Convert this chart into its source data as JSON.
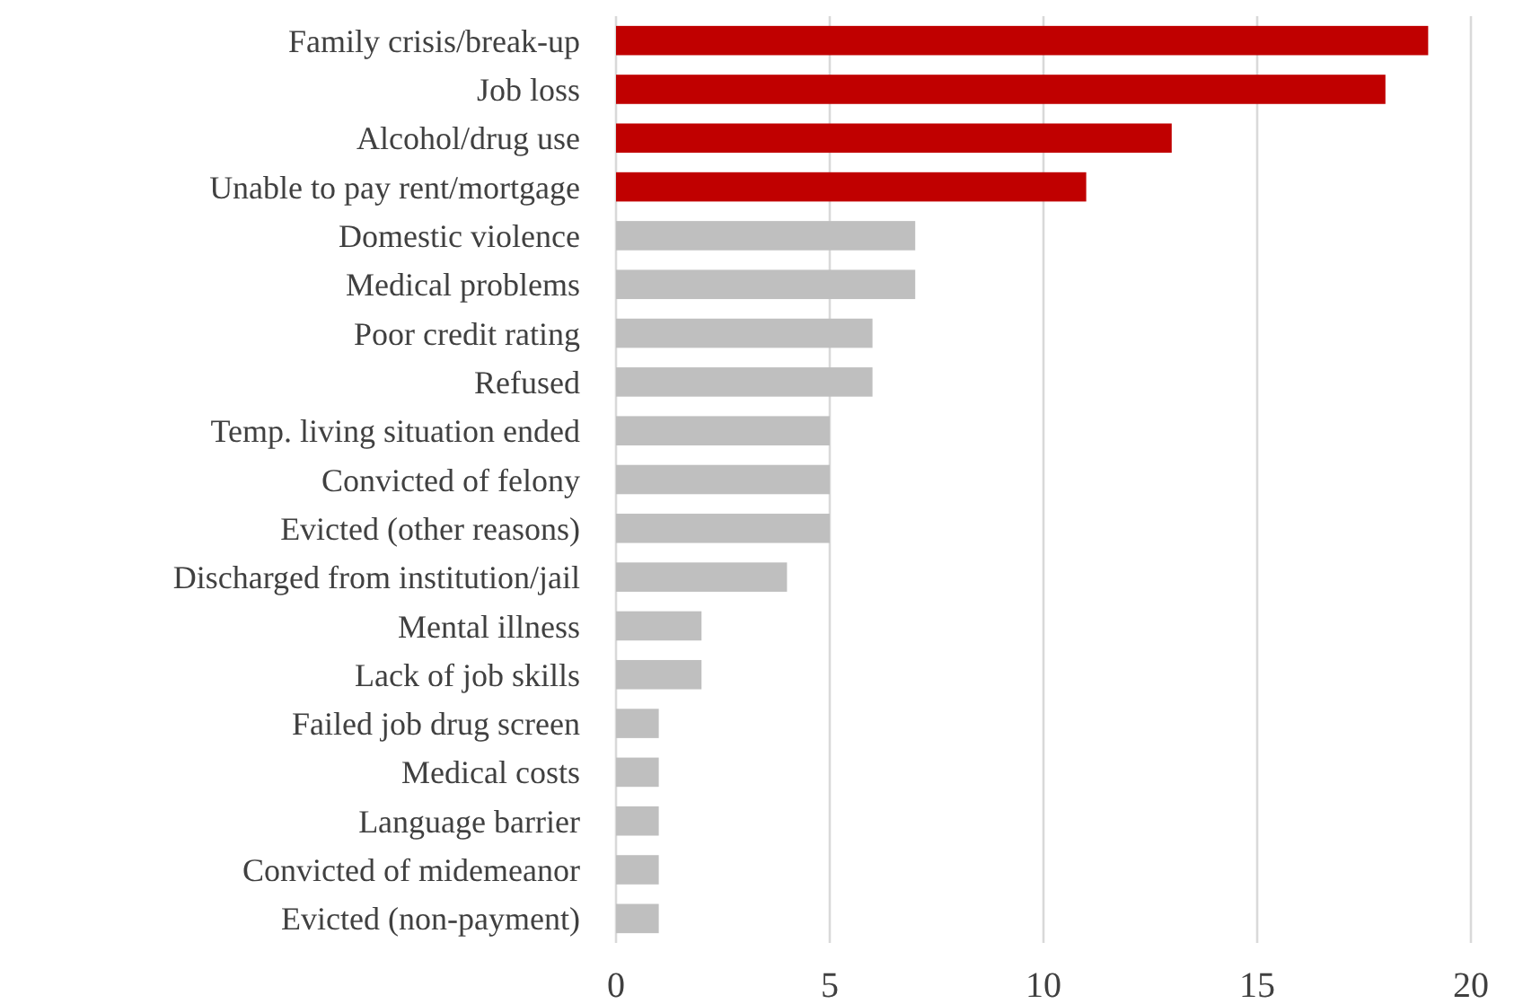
{
  "chart_data": {
    "type": "bar",
    "orientation": "horizontal",
    "categories": [
      "Family crisis/break-up",
      "Job loss",
      "Alcohol/drug use",
      "Unable to pay rent/mortgage",
      "Domestic violence",
      "Medical problems",
      "Poor credit rating",
      "Refused",
      "Temp. living situation ended",
      "Convicted of felony",
      "Evicted (other reasons)",
      "Discharged from institution/jail",
      "Mental illness",
      "Lack of job skills",
      "Failed job drug screen",
      "Medical costs",
      "Language barrier",
      "Convicted of midemeanor",
      "Evicted (non-payment)"
    ],
    "values": [
      19,
      18,
      13,
      11,
      7,
      7,
      6,
      6,
      5,
      5,
      5,
      4,
      2,
      2,
      1,
      1,
      1,
      1,
      1
    ],
    "colors": [
      "#c00000",
      "#c00000",
      "#c00000",
      "#c00000",
      "#bfbfbf",
      "#bfbfbf",
      "#bfbfbf",
      "#bfbfbf",
      "#bfbfbf",
      "#bfbfbf",
      "#bfbfbf",
      "#bfbfbf",
      "#bfbfbf",
      "#bfbfbf",
      "#bfbfbf",
      "#bfbfbf",
      "#bfbfbf",
      "#bfbfbf",
      "#bfbfbf"
    ],
    "xlim": [
      0,
      20
    ],
    "xticks": [
      0,
      5,
      10,
      15,
      20
    ],
    "grid": "x"
  }
}
